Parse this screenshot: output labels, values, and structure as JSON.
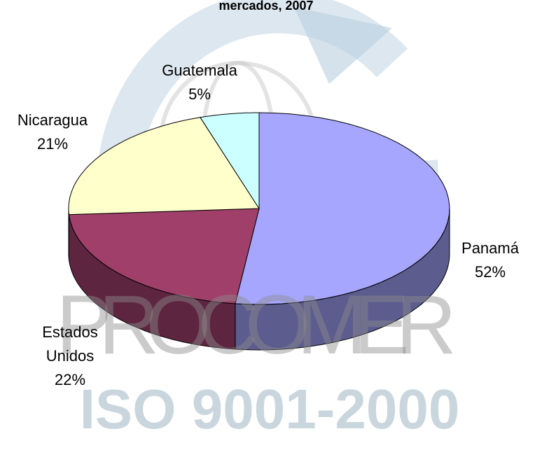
{
  "chart_data": {
    "type": "pie",
    "title": "mercados, 2007",
    "categories": [
      "Panamá",
      "Estados Unidos",
      "Nicaragua",
      "Guatemala"
    ],
    "values": [
      52,
      22,
      21,
      5
    ],
    "value_labels": [
      "52%",
      "22%",
      "21%",
      "5%"
    ],
    "colors": [
      "#a6a6ff",
      "#a0406a",
      "#ffffcc",
      "#ccffff"
    ],
    "side_colors": [
      "#5c5c8e",
      "#5e2541",
      "#9a9a7a",
      "#7a9999"
    ],
    "watermark": [
      "PROCOMER",
      "ISO 9001-2000"
    ]
  }
}
